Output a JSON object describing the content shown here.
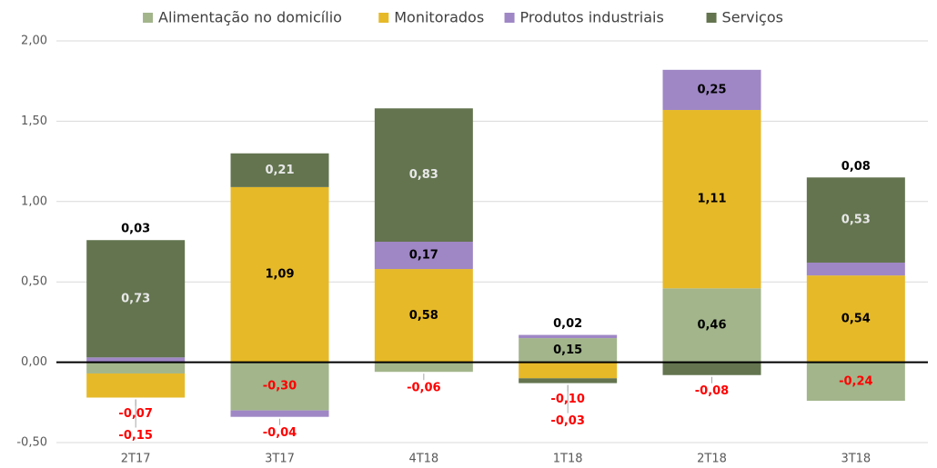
{
  "chart_data": {
    "type": "stacked_bar",
    "categories": [
      "2T17",
      "3T17",
      "4T18",
      "1T18",
      "2T18",
      "3T18"
    ],
    "series": [
      {
        "name": "Alimentação no domicílio",
        "color": "#a2b58b",
        "values": [
          -0.07,
          -0.3,
          -0.06,
          0.15,
          0.46,
          -0.24
        ],
        "value_labels": [
          "-0,07",
          "-0,30",
          "-0,06",
          "0,15",
          "0,46",
          "-0,24"
        ]
      },
      {
        "name": "Monitorados",
        "color": "#e6b929",
        "values": [
          -0.15,
          1.09,
          0.58,
          -0.1,
          1.11,
          0.54
        ],
        "value_labels": [
          "-0,15",
          "1,09",
          "0,58",
          "-0,10",
          "1,11",
          "0,54"
        ]
      },
      {
        "name": "Produtos industriais",
        "color": "#9f87c5",
        "values": [
          0.03,
          -0.04,
          0.17,
          0.02,
          0.25,
          0.08
        ],
        "value_labels": [
          "0,03",
          "-0,04",
          "0,17",
          "0,02",
          "0,25",
          "0,08"
        ]
      },
      {
        "name": "Serviços",
        "color": "#63744f",
        "values": [
          0.73,
          0.21,
          0.83,
          -0.03,
          -0.08,
          0.53
        ],
        "value_labels": [
          "0,73",
          "0,21",
          "0,83",
          "-0,03",
          "-0,08",
          "0,53"
        ]
      }
    ],
    "ylim": [
      -0.5,
      2.0
    ],
    "yticks": [
      {
        "value": -0.5,
        "label": "-0,50"
      },
      {
        "value": 0,
        "label": "0,00"
      },
      {
        "value": 0.5,
        "label": "0,50"
      },
      {
        "value": 1.0,
        "label": "1,00"
      },
      {
        "value": 1.5,
        "label": "1,50"
      },
      {
        "value": 2.0,
        "label": "2,00"
      }
    ],
    "grid": true,
    "legend": "top"
  }
}
